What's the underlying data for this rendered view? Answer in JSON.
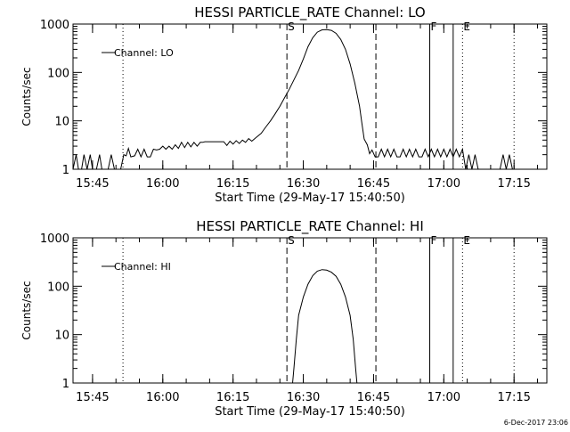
{
  "footer": {
    "timestamp": "6-Dec-2017 23:06"
  },
  "chart_data": [
    {
      "type": "line",
      "title": "HESSI PARTICLE_RATE Channel: LO",
      "ylabel": "Counts/sec",
      "xlabel": "Start Time (29-May-17 15:40:50)",
      "yscale": "log",
      "ylim": [
        1,
        1000
      ],
      "xlim": [
        "15:40:50",
        "17:22:00"
      ],
      "x_ticks": [
        "15:45",
        "16:00",
        "16:15",
        "16:30",
        "16:45",
        "17:00",
        "17:15"
      ],
      "y_ticks": [
        "1",
        "10",
        "100",
        "1000"
      ],
      "legend": {
        "label": "Channel: LO",
        "position": "top-left"
      },
      "markers": [
        {
          "label": "",
          "time": "15:51:30",
          "style": "dotted"
        },
        {
          "label": "S",
          "time": "16:26:30",
          "style": "dashed"
        },
        {
          "label": "",
          "time": "16:45:30",
          "style": "dashed"
        },
        {
          "label": "F",
          "time": "16:57:00",
          "style": "solid"
        },
        {
          "label": "",
          "time": "17:02:00",
          "style": "solid"
        },
        {
          "label": "E",
          "time": "17:04:00",
          "style": "dotted"
        },
        {
          "label": "",
          "time": "17:15:00",
          "style": "dotted"
        }
      ],
      "series": [
        {
          "name": "Channel: LO",
          "points": [
            [
              "15:40:50",
              1
            ],
            [
              "15:41:30",
              2
            ],
            [
              "15:42:00",
              1
            ],
            [
              "15:42:40",
              1
            ],
            [
              "15:43:10",
              2
            ],
            [
              "15:43:50",
              1
            ],
            [
              "15:44:30",
              2
            ],
            [
              "15:45:00",
              1
            ],
            [
              "15:45:50",
              1
            ],
            [
              "15:46:30",
              2
            ],
            [
              "15:47:00",
              1
            ],
            [
              "15:48:20",
              1
            ],
            [
              "15:49:00",
              2
            ],
            [
              "15:49:40",
              1
            ],
            [
              "15:51:00",
              1
            ],
            [
              "15:51:40",
              2
            ],
            [
              "15:52:10",
              1.9
            ],
            [
              "15:52:40",
              2.7
            ],
            [
              "15:53:10",
              1.8
            ],
            [
              "15:54:00",
              1.9
            ],
            [
              "15:54:40",
              2.6
            ],
            [
              "15:55:20",
              1.8
            ],
            [
              "15:56:00",
              2.6
            ],
            [
              "15:56:40",
              1.8
            ],
            [
              "15:57:20",
              1.8
            ],
            [
              "15:58:00",
              2.6
            ],
            [
              "15:58:40",
              2.5
            ],
            [
              "15:59:20",
              2.6
            ],
            [
              "16:00:00",
              3.0
            ],
            [
              "16:00:40",
              2.6
            ],
            [
              "16:01:20",
              3.0
            ],
            [
              "16:02:00",
              2.6
            ],
            [
              "16:02:40",
              3.2
            ],
            [
              "16:03:20",
              2.7
            ],
            [
              "16:04:00",
              3.6
            ],
            [
              "16:04:40",
              2.8
            ],
            [
              "16:05:20",
              3.6
            ],
            [
              "16:06:00",
              2.9
            ],
            [
              "16:06:40",
              3.6
            ],
            [
              "16:07:20",
              3.0
            ],
            [
              "16:08:00",
              3.6
            ],
            [
              "16:08:30",
              3.6
            ],
            [
              "16:09:00",
              3.7
            ],
            [
              "16:10:00",
              3.7
            ],
            [
              "16:11:00",
              3.7
            ],
            [
              "16:12:00",
              3.7
            ],
            [
              "16:13:00",
              3.7
            ],
            [
              "16:13:40",
              3.1
            ],
            [
              "16:14:20",
              3.8
            ],
            [
              "16:15:00",
              3.3
            ],
            [
              "16:15:40",
              3.9
            ],
            [
              "16:16:20",
              3.4
            ],
            [
              "16:17:00",
              4.0
            ],
            [
              "16:17:40",
              3.6
            ],
            [
              "16:18:20",
              4.3
            ],
            [
              "16:19:00",
              3.8
            ],
            [
              "16:20:00",
              4.6
            ],
            [
              "16:21:00",
              5.5
            ],
            [
              "16:22:00",
              7.5
            ],
            [
              "16:23:00",
              10
            ],
            [
              "16:24:00",
              14
            ],
            [
              "16:25:00",
              20
            ],
            [
              "16:26:00",
              30
            ],
            [
              "16:27:00",
              45
            ],
            [
              "16:28:00",
              70
            ],
            [
              "16:29:00",
              110
            ],
            [
              "16:30:00",
              190
            ],
            [
              "16:31:00",
              340
            ],
            [
              "16:32:00",
              520
            ],
            [
              "16:33:00",
              680
            ],
            [
              "16:34:00",
              760
            ],
            [
              "16:35:00",
              770
            ],
            [
              "16:36:00",
              740
            ],
            [
              "16:37:00",
              640
            ],
            [
              "16:38:00",
              480
            ],
            [
              "16:39:00",
              300
            ],
            [
              "16:40:00",
              150
            ],
            [
              "16:41:00",
              60
            ],
            [
              "16:42:00",
              20
            ],
            [
              "16:42:30",
              9
            ],
            [
              "16:43:00",
              4.2
            ],
            [
              "16:43:40",
              3.2
            ],
            [
              "16:44:10",
              2.1
            ],
            [
              "16:44:40",
              2.5
            ],
            [
              "16:45:20",
              1.8
            ],
            [
              "16:46:00",
              1.8
            ],
            [
              "16:46:40",
              2.6
            ],
            [
              "16:47:20",
              1.8
            ],
            [
              "16:48:00",
              2.6
            ],
            [
              "16:48:40",
              1.8
            ],
            [
              "16:49:20",
              2.6
            ],
            [
              "16:50:00",
              1.8
            ],
            [
              "16:50:40",
              1.8
            ],
            [
              "16:51:20",
              2.6
            ],
            [
              "16:52:00",
              1.8
            ],
            [
              "16:52:40",
              2.6
            ],
            [
              "16:53:20",
              1.8
            ],
            [
              "16:54:00",
              2.6
            ],
            [
              "16:54:40",
              1.8
            ],
            [
              "16:55:20",
              1.8
            ],
            [
              "16:56:00",
              2.6
            ],
            [
              "16:56:40",
              1.8
            ],
            [
              "16:57:20",
              2.6
            ],
            [
              "16:58:00",
              1.8
            ],
            [
              "16:58:40",
              2.6
            ],
            [
              "16:59:20",
              1.8
            ],
            [
              "17:00:00",
              2.6
            ],
            [
              "17:00:40",
              1.8
            ],
            [
              "17:01:20",
              2.6
            ],
            [
              "17:02:00",
              1.8
            ],
            [
              "17:02:40",
              2.6
            ],
            [
              "17:03:20",
              1.8
            ],
            [
              "17:04:00",
              2.6
            ],
            [
              "17:04:40",
              1
            ],
            [
              "17:05:20",
              2
            ],
            [
              "17:06:00",
              1
            ],
            [
              "17:06:40",
              2
            ],
            [
              "17:07:20",
              1
            ],
            [
              "17:12:00",
              1
            ],
            [
              "17:12:40",
              2
            ],
            [
              "17:13:20",
              1
            ],
            [
              "17:14:00",
              2
            ],
            [
              "17:14:40",
              1
            ],
            [
              "17:22:00",
              1
            ]
          ]
        }
      ]
    },
    {
      "type": "line",
      "title": "HESSI PARTICLE_RATE Channel: HI",
      "ylabel": "Counts/sec",
      "xlabel": "Start Time (29-May-17 15:40:50)",
      "yscale": "log",
      "ylim": [
        1,
        1000
      ],
      "xlim": [
        "15:40:50",
        "17:22:00"
      ],
      "x_ticks": [
        "15:45",
        "16:00",
        "16:15",
        "16:30",
        "16:45",
        "17:00",
        "17:15"
      ],
      "y_ticks": [
        "1",
        "10",
        "100",
        "1000"
      ],
      "legend": {
        "label": "Channel: HI",
        "position": "top-left"
      },
      "markers": [
        {
          "label": "",
          "time": "15:51:30",
          "style": "dotted"
        },
        {
          "label": "S",
          "time": "16:26:30",
          "style": "dashed"
        },
        {
          "label": "",
          "time": "16:45:30",
          "style": "dashed"
        },
        {
          "label": "F",
          "time": "16:57:00",
          "style": "solid"
        },
        {
          "label": "",
          "time": "17:02:00",
          "style": "solid"
        },
        {
          "label": "E",
          "time": "17:04:00",
          "style": "dotted"
        },
        {
          "label": "",
          "time": "17:15:00",
          "style": "dotted"
        }
      ],
      "series": [
        {
          "name": "Channel: HI",
          "points": [
            [
              "16:27:40",
              0.9
            ],
            [
              "16:28:00",
              2
            ],
            [
              "16:28:30",
              8
            ],
            [
              "16:29:00",
              25
            ],
            [
              "16:30:00",
              60
            ],
            [
              "16:31:00",
              110
            ],
            [
              "16:32:00",
              165
            ],
            [
              "16:33:00",
              205
            ],
            [
              "16:34:00",
              220
            ],
            [
              "16:35:00",
              215
            ],
            [
              "16:36:00",
              195
            ],
            [
              "16:37:00",
              160
            ],
            [
              "16:38:00",
              110
            ],
            [
              "16:39:00",
              60
            ],
            [
              "16:40:00",
              25
            ],
            [
              "16:40:40",
              8
            ],
            [
              "16:41:10",
              2
            ],
            [
              "16:41:30",
              0.9
            ]
          ]
        }
      ]
    }
  ]
}
